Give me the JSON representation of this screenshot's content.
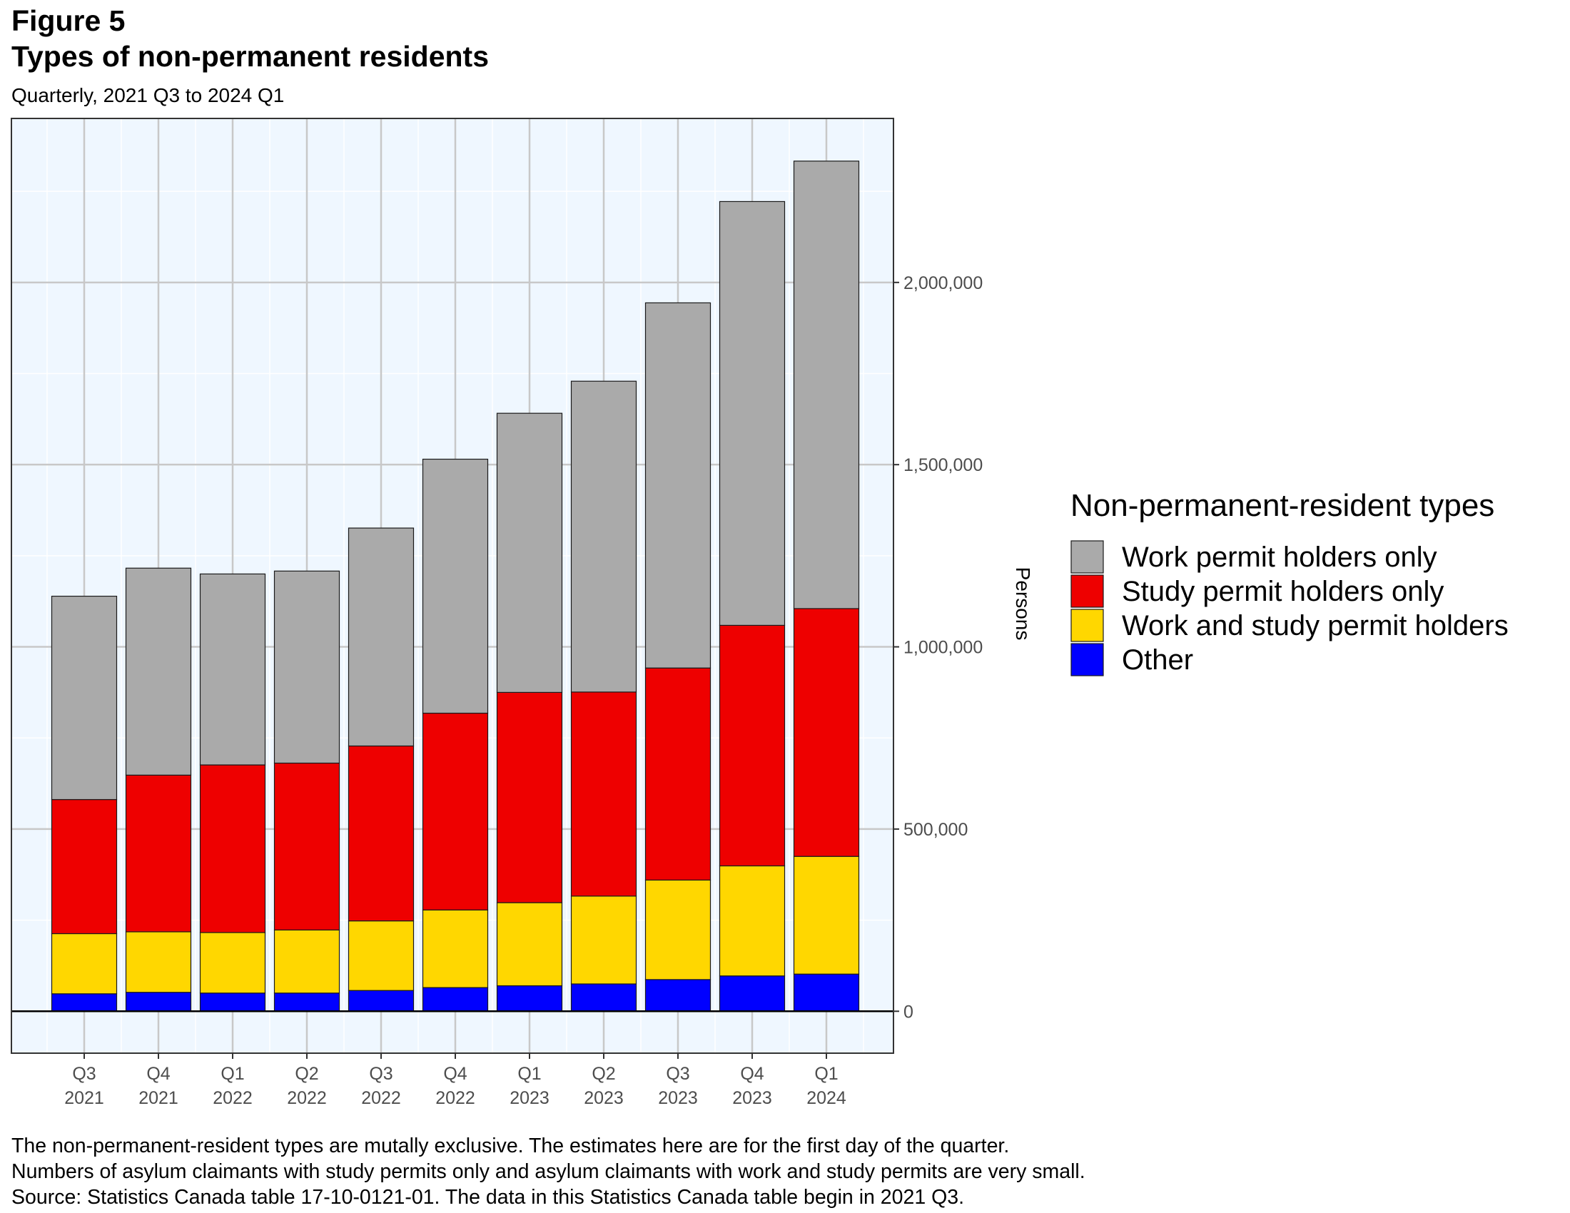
{
  "figure_label": "Figure 5",
  "title": "Types of non-permanent residents",
  "subtitle": "Quarterly, 2021 Q3 to 2024 Q1",
  "notes": [
    "The non-permanent-resident types are mutally exclusive. The estimates here are for the first day of the quarter.",
    "Numbers of asylum claimants with study permits only and asylum claimants with work and study permits are very small.",
    "Source: Statistics Canada table 17-10-0121-01. The data in this Statistics Canada table begin in 2021 Q3."
  ],
  "chart_data": {
    "type": "bar",
    "stacked": true,
    "categories": [
      [
        "Q3",
        "2021"
      ],
      [
        "Q4",
        "2021"
      ],
      [
        "Q1",
        "2022"
      ],
      [
        "Q2",
        "2022"
      ],
      [
        "Q3",
        "2022"
      ],
      [
        "Q4",
        "2022"
      ],
      [
        "Q1",
        "2023"
      ],
      [
        "Q2",
        "2023"
      ],
      [
        "Q3",
        "2023"
      ],
      [
        "Q4",
        "2023"
      ],
      [
        "Q1",
        "2024"
      ]
    ],
    "ylabel": "Persons",
    "y_axis_side": "right",
    "ylim": [
      -115000,
      2450000
    ],
    "yticks": [
      0,
      500000,
      1000000,
      1500000,
      2000000
    ],
    "ytick_labels": [
      "0",
      "500,000",
      "1,000,000",
      "1,500,000",
      "2,000,000"
    ],
    "grid": true,
    "legend_title": "Non-permanent-resident types",
    "legend_position": "right",
    "series": [
      {
        "name": "Other",
        "color": "#0000FF",
        "values": [
          48000,
          52000,
          50000,
          50000,
          57000,
          65000,
          70000,
          75000,
          87000,
          97000,
          102000
        ]
      },
      {
        "name": "Work and study permit holders",
        "color": "#FFD700",
        "values": [
          165000,
          166000,
          166000,
          173000,
          191000,
          213000,
          228000,
          241000,
          273000,
          302000,
          323000
        ]
      },
      {
        "name": "Study permit holders only",
        "color": "#EE0000",
        "values": [
          368000,
          430000,
          460000,
          458000,
          480000,
          540000,
          577000,
          560000,
          582000,
          660000,
          680000
        ]
      },
      {
        "name": "Work permit holders only",
        "color": "#AAAAAA",
        "values": [
          558000,
          568000,
          524000,
          527000,
          598000,
          697000,
          766000,
          853000,
          1002000,
          1163000,
          1228000
        ]
      }
    ],
    "legend_order": [
      "Work permit holders only",
      "Study permit holders only",
      "Work and study permit holders",
      "Other"
    ]
  }
}
